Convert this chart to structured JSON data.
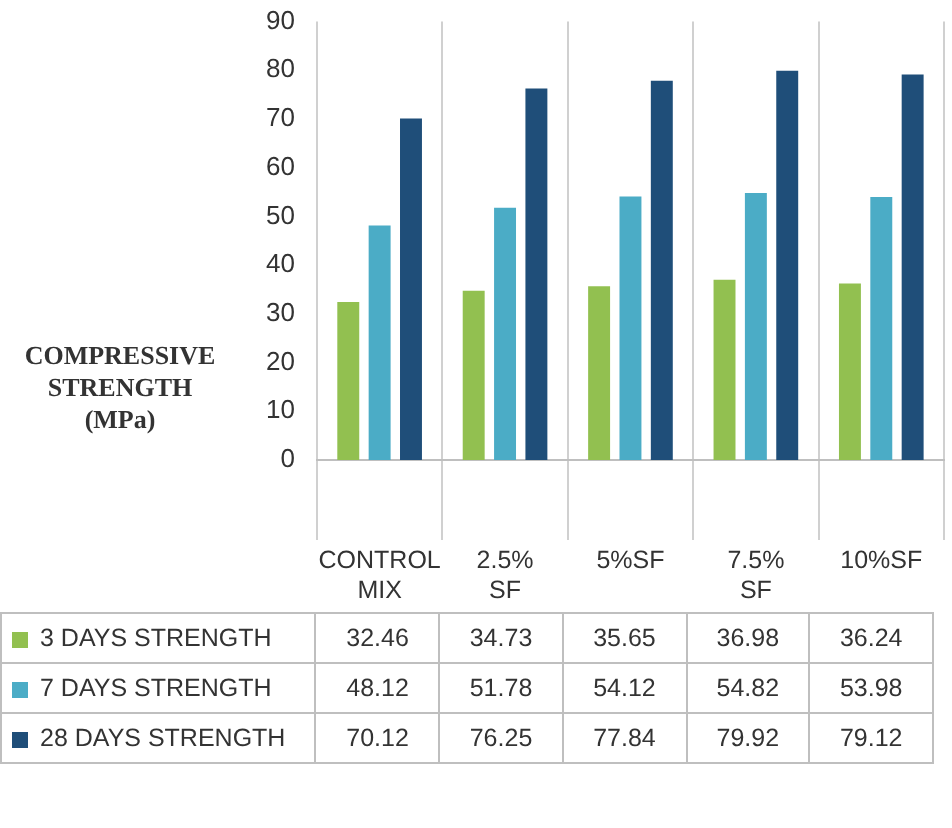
{
  "chart_data": {
    "type": "bar",
    "ylabel": "COMPRESSIVE STRENGTH (MPa)",
    "categories": [
      "CONTROL MIX",
      "2.5% SF",
      "5%SF",
      "7.5% SF",
      "10%SF"
    ],
    "series": [
      {
        "name": "3 DAYS STRENGTH",
        "color": "#92c050",
        "values": [
          32.46,
          34.73,
          35.65,
          36.98,
          36.24
        ]
      },
      {
        "name": "7 DAYS STRENGTH",
        "color": "#4bacc6",
        "values": [
          48.12,
          51.78,
          54.12,
          54.82,
          53.98
        ]
      },
      {
        "name": "28 DAYS STRENGTH",
        "color": "#1f4e79",
        "values": [
          70.12,
          76.25,
          77.84,
          79.92,
          79.12
        ]
      }
    ],
    "ylim": [
      0,
      90
    ],
    "yticks": [
      0,
      10,
      20,
      30,
      40,
      50,
      60,
      70,
      80,
      90
    ],
    "grid": "x",
    "legend": "bottom",
    "data_labels": true
  }
}
